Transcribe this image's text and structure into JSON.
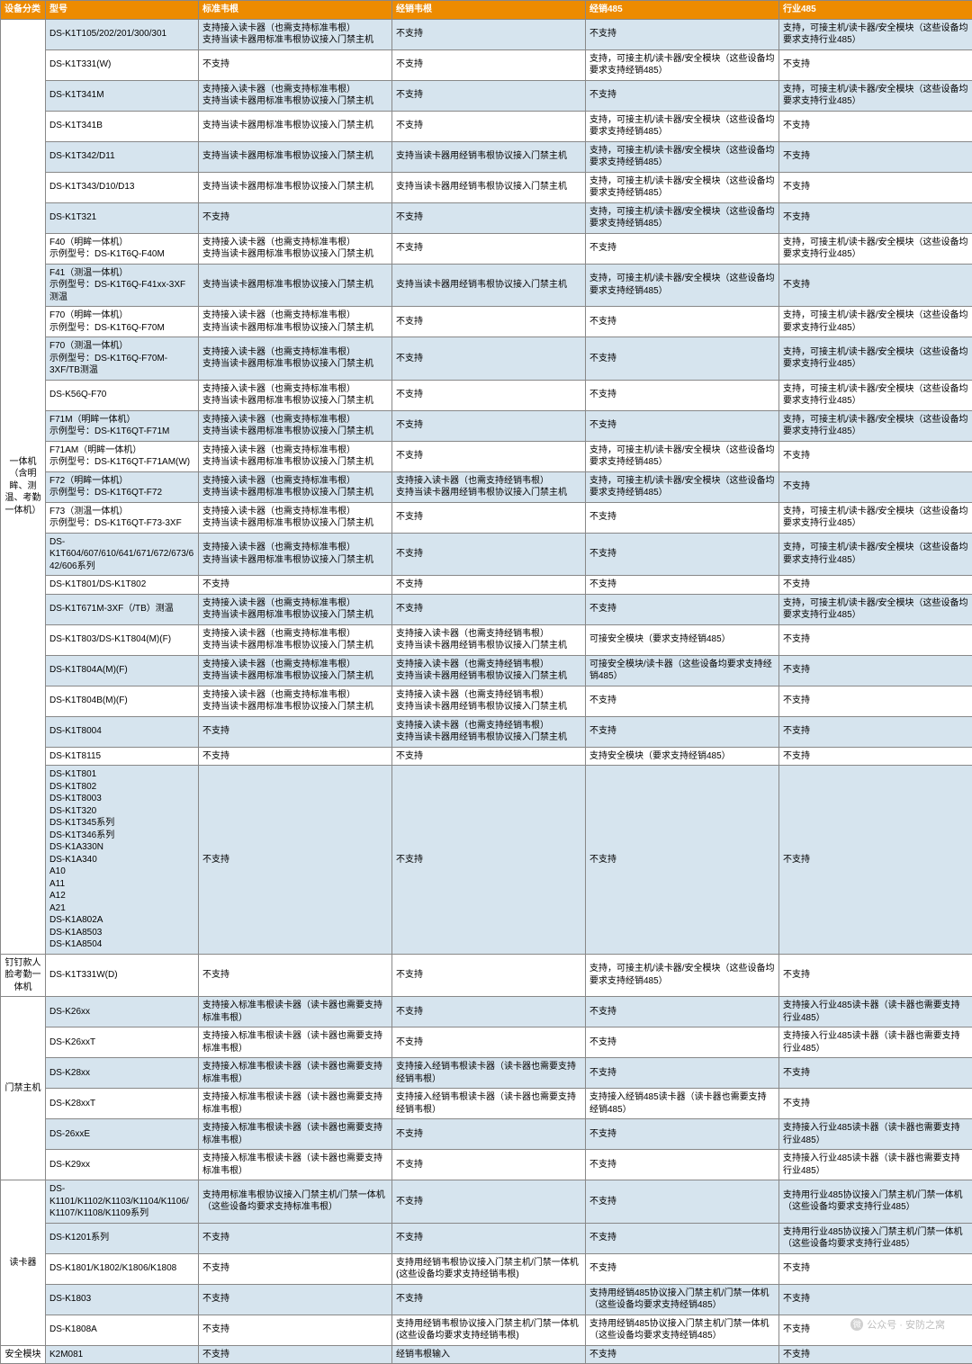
{
  "headers": [
    "设备分类",
    "型号",
    "标准韦根",
    "经销韦根",
    "经销485",
    "行业485"
  ],
  "categories": [
    {
      "name": "一体机（含明眸、测温、考勤一体机）",
      "rows": [
        {
          "alt": 1,
          "m": "DS-K1T105/202/201/300/301",
          "c3": "支持接入读卡器（也需支持标准韦根）\n支持当读卡器用标准韦根协议接入门禁主机",
          "c4": "不支持",
          "c5": "不支持",
          "c6": "支持，可接主机/读卡器/安全模块（这些设备均要求支持行业485）"
        },
        {
          "alt": 0,
          "m": "DS-K1T331(W)",
          "c3": "不支持",
          "c4": "不支持",
          "c5": "支持，可接主机/读卡器/安全模块（这些设备均要求支持经销485）",
          "c6": "不支持"
        },
        {
          "alt": 1,
          "m": "DS-K1T341M",
          "c3": "支持接入读卡器（也需支持标准韦根）\n支持当读卡器用标准韦根协议接入门禁主机",
          "c4": "不支持",
          "c5": "不支持",
          "c6": "支持，可接主机/读卡器/安全模块（这些设备均要求支持行业485）"
        },
        {
          "alt": 0,
          "m": "DS-K1T341B",
          "c3": "支持当读卡器用标准韦根协议接入门禁主机",
          "c4": "不支持",
          "c5": "支持，可接主机/读卡器/安全模块（这些设备均要求支持经销485）",
          "c6": "不支持"
        },
        {
          "alt": 1,
          "m": "DS-K1T342/D11",
          "c3": "支持当读卡器用标准韦根协议接入门禁主机",
          "c4": "支持当读卡器用经销韦根协议接入门禁主机",
          "c5": "支持，可接主机/读卡器/安全模块（这些设备均要求支持经销485）",
          "c6": "不支持"
        },
        {
          "alt": 0,
          "m": "DS-K1T343/D10/D13",
          "c3": "支持当读卡器用标准韦根协议接入门禁主机",
          "c4": "支持当读卡器用经销韦根协议接入门禁主机",
          "c5": "支持，可接主机/读卡器/安全模块（这些设备均要求支持经销485）",
          "c6": "不支持"
        },
        {
          "alt": 1,
          "m": "DS-K1T321",
          "c3": "不支持",
          "c4": "不支持",
          "c5": "支持，可接主机/读卡器/安全模块（这些设备均要求支持经销485）",
          "c6": "不支持"
        },
        {
          "alt": 0,
          "m": "F40（明眸一体机）\n示例型号：DS-K1T6Q-F40M",
          "c3": "支持接入读卡器（也需支持标准韦根）\n支持当读卡器用标准韦根协议接入门禁主机",
          "c4": "不支持",
          "c5": "不支持",
          "c6": "支持，可接主机/读卡器/安全模块（这些设备均要求支持行业485）"
        },
        {
          "alt": 1,
          "m": "F41（测温一体机）\n示例型号：DS-K1T6Q-F41xx-3XF测温",
          "c3": "支持当读卡器用标准韦根协议接入门禁主机",
          "c4": "支持当读卡器用经销韦根协议接入门禁主机",
          "c5": "支持，可接主机/读卡器/安全模块（这些设备均要求支持经销485）",
          "c6": "不支持"
        },
        {
          "alt": 0,
          "m": "F70（明眸一体机）\n示例型号：DS-K1T6Q-F70M",
          "c3": "支持接入读卡器（也需支持标准韦根）\n支持当读卡器用标准韦根协议接入门禁主机",
          "c4": "不支持",
          "c5": "不支持",
          "c6": "支持，可接主机/读卡器/安全模块（这些设备均要求支持行业485）"
        },
        {
          "alt": 1,
          "m": "F70（测温一体机）\n示例型号：DS-K1T6Q-F70M-3XF/TB测温",
          "c3": "支持接入读卡器（也需支持标准韦根）\n支持当读卡器用标准韦根协议接入门禁主机",
          "c4": "不支持",
          "c5": "不支持",
          "c6": "支持，可接主机/读卡器/安全模块（这些设备均要求支持行业485）"
        },
        {
          "alt": 0,
          "m": "DS-K56Q-F70",
          "c3": "支持接入读卡器（也需支持标准韦根）\n支持当读卡器用标准韦根协议接入门禁主机",
          "c4": "不支持",
          "c5": "不支持",
          "c6": "支持，可接主机/读卡器/安全模块（这些设备均要求支持行业485）"
        },
        {
          "alt": 1,
          "m": "F71M（明眸一体机）\n示例型号：DS-K1T6QT-F71M",
          "c3": "支持接入读卡器（也需支持标准韦根）\n支持当读卡器用标准韦根协议接入门禁主机",
          "c4": "不支持",
          "c5": "不支持",
          "c6": "支持，可接主机/读卡器/安全模块（这些设备均要求支持行业485）"
        },
        {
          "alt": 0,
          "m": "F71AM（明眸一体机）\n示例型号：DS-K1T6QT-F71AM(W)",
          "c3": "支持接入读卡器（也需支持标准韦根）\n支持当读卡器用标准韦根协议接入门禁主机",
          "c4": "不支持",
          "c5": "支持，可接主机/读卡器/安全模块（这些设备均要求支持经销485）",
          "c6": "不支持"
        },
        {
          "alt": 1,
          "m": "F72（明眸一体机）\n示例型号：DS-K1T6QT-F72",
          "c3": "支持接入读卡器（也需支持标准韦根）\n支持当读卡器用标准韦根协议接入门禁主机",
          "c4": "支持接入读卡器（也需支持经销韦根）\n支持当读卡器用经销韦根协议接入门禁主机",
          "c5": "支持，可接主机/读卡器/安全模块（这些设备均要求支持经销485）",
          "c6": "不支持"
        },
        {
          "alt": 0,
          "m": "F73（测温一体机）\n示例型号：DS-K1T6QT-F73-3XF",
          "c3": "支持接入读卡器（也需支持标准韦根）\n支持当读卡器用标准韦根协议接入门禁主机",
          "c4": "不支持",
          "c5": "不支持",
          "c6": "支持，可接主机/读卡器/安全模块（这些设备均要求支持行业485）"
        },
        {
          "alt": 1,
          "m": "DS-K1T604/607/610/641/671/672/673/642/606系列",
          "c3": "支持接入读卡器（也需支持标准韦根）\n支持当读卡器用标准韦根协议接入门禁主机",
          "c4": "不支持",
          "c5": "不支持",
          "c6": "支持，可接主机/读卡器/安全模块（这些设备均要求支持行业485）"
        },
        {
          "alt": 0,
          "m": "DS-K1T801/DS-K1T802",
          "c3": "不支持",
          "c4": "不支持",
          "c5": "不支持",
          "c6": "不支持"
        },
        {
          "alt": 1,
          "m": "DS-K1T671M-3XF（/TB）测温",
          "c3": "支持接入读卡器（也需支持标准韦根）\n支持当读卡器用标准韦根协议接入门禁主机",
          "c4": "不支持",
          "c5": "不支持",
          "c6": "支持，可接主机/读卡器/安全模块（这些设备均要求支持行业485）"
        },
        {
          "alt": 0,
          "m": "DS-K1T803/DS-K1T804(M)(F)",
          "c3": "支持接入读卡器（也需支持标准韦根）\n支持当读卡器用标准韦根协议接入门禁主机",
          "c4": "支持接入读卡器（也需支持经销韦根）\n支持当读卡器用经销韦根协议接入门禁主机",
          "c5": "可接安全模块（要求支持经销485）",
          "c6": "不支持"
        },
        {
          "alt": 1,
          "m": "DS-K1T804A(M)(F)",
          "c3": "支持接入读卡器（也需支持标准韦根）\n支持当读卡器用标准韦根协议接入门禁主机",
          "c4": "支持接入读卡器（也需支持经销韦根）\n支持当读卡器用经销韦根协议接入门禁主机",
          "c5": "可接安全模块/读卡器（这些设备均要求支持经销485）",
          "c6": "不支持"
        },
        {
          "alt": 0,
          "m": "DS-K1T804B(M)(F)",
          "c3": "支持接入读卡器（也需支持标准韦根）\n支持当读卡器用标准韦根协议接入门禁主机",
          "c4": "支持接入读卡器（也需支持经销韦根）\n支持当读卡器用经销韦根协议接入门禁主机",
          "c5": "不支持",
          "c6": "不支持"
        },
        {
          "alt": 1,
          "m": "DS-K1T8004",
          "c3": "不支持",
          "c4": "支持接入读卡器（也需支持经销韦根）\n支持当读卡器用经销韦根协议接入门禁主机",
          "c5": "不支持",
          "c6": "不支持"
        },
        {
          "alt": 0,
          "m": "DS-K1T8115",
          "c3": "不支持",
          "c4": "不支持",
          "c5": "支持安全模块（要求支持经销485）",
          "c6": "不支持"
        },
        {
          "alt": 1,
          "m": "DS-K1T801\nDS-K1T802\nDS-K1T8003\nDS-K1T320\nDS-K1T345系列\nDS-K1T346系列\nDS-K1A330N\nDS-K1A340\nA10\nA11\nA12\nA21\nDS-K1A802A\nDS-K1A8503\nDS-K1A8504",
          "c3": "不支持",
          "c4": "不支持",
          "c5": "不支持",
          "c6": "不支持"
        }
      ]
    },
    {
      "name": "钉钉款人脸考勤一体机",
      "rows": [
        {
          "alt": 0,
          "m": "DS-K1T331W(D)",
          "c3": "不支持",
          "c4": "不支持",
          "c5": "支持，可接主机/读卡器/安全模块（这些设备均要求支持经销485）",
          "c6": "不支持"
        }
      ]
    },
    {
      "name": "门禁主机",
      "rows": [
        {
          "alt": 1,
          "m": "DS-K26xx",
          "c3": "支持接入标准韦根读卡器（读卡器也需要支持标准韦根）",
          "c4": "不支持",
          "c5": "不支持",
          "c6": "支持接入行业485读卡器（读卡器也需要支持行业485）"
        },
        {
          "alt": 0,
          "m": "DS-K26xxT",
          "c3": "支持接入标准韦根读卡器（读卡器也需要支持标准韦根）",
          "c4": "不支持",
          "c5": "不支持",
          "c6": "支持接入行业485读卡器（读卡器也需要支持行业485）"
        },
        {
          "alt": 1,
          "m": "DS-K28xx",
          "c3": "支持接入标准韦根读卡器（读卡器也需要支持标准韦根）",
          "c4": "支持接入经销韦根读卡器（读卡器也需要支持经销韦根）",
          "c5": "不支持",
          "c6": "不支持"
        },
        {
          "alt": 0,
          "m": "DS-K28xxT",
          "c3": "支持接入标准韦根读卡器（读卡器也需要支持标准韦根）",
          "c4": "支持接入经销韦根读卡器（读卡器也需要支持经销韦根）",
          "c5": "支持接入经销485读卡器（读卡器也需要支持经销485）",
          "c6": "不支持"
        },
        {
          "alt": 1,
          "m": "DS-26xxE",
          "c3": "支持接入标准韦根读卡器（读卡器也需要支持标准韦根）",
          "c4": "不支持",
          "c5": "不支持",
          "c6": "支持接入行业485读卡器（读卡器也需要支持行业485）"
        },
        {
          "alt": 0,
          "m": "DS-K29xx",
          "c3": "支持接入标准韦根读卡器（读卡器也需要支持标准韦根）",
          "c4": "不支持",
          "c5": "不支持",
          "c6": "支持接入行业485读卡器（读卡器也需要支持行业485）"
        }
      ]
    },
    {
      "name": "读卡器",
      "rows": [
        {
          "alt": 1,
          "m": "DS-K1101/K1102/K1103/K1104/K1106/K1107/K1108/K1109系列",
          "c3": "支持用标准韦根协议接入门禁主机/门禁一体机（这些设备均要求支持标准韦根）",
          "c4": "不支持",
          "c5": "不支持",
          "c6": "支持用行业485协议接入门禁主机/门禁一体机（这些设备均要求支持行业485）"
        },
        {
          "alt": 1,
          "m": "DS-K1201系列",
          "c3": "不支持",
          "c4": "不支持",
          "c5": "不支持",
          "c6": "支持用行业485协议接入门禁主机/门禁一体机（这些设备均要求支持行业485）"
        },
        {
          "alt": 0,
          "m": "DS-K1801/K1802/K1806/K1808",
          "c3": "不支持",
          "c4": "支持用经销韦根协议接入门禁主机/门禁一体机(这些设备均要求支持经销韦根)",
          "c5": "不支持",
          "c6": "不支持"
        },
        {
          "alt": 1,
          "m": "DS-K1803",
          "c3": "不支持",
          "c4": "不支持",
          "c5": "支持用经销485协议接入门禁主机/门禁一体机（这些设备均要求支持经销485）",
          "c6": "不支持"
        },
        {
          "alt": 0,
          "m": "DS-K1808A",
          "c3": "不支持",
          "c4": "支持用经销韦根协议接入门禁主机/门禁一体机(这些设备均要求支持经销韦根)",
          "c5": "支持用经销485协议接入门禁主机/门禁一体机（这些设备均要求支持经销485）",
          "c6": "不支持"
        }
      ]
    },
    {
      "name": "安全模块",
      "rows": [
        {
          "alt": 1,
          "m": "K2M081",
          "c3": "不支持",
          "c4": "经销韦根输入",
          "c5": "不支持",
          "c6": "不支持"
        }
      ]
    }
  ],
  "watermark": "公众号 · 安防之窝"
}
